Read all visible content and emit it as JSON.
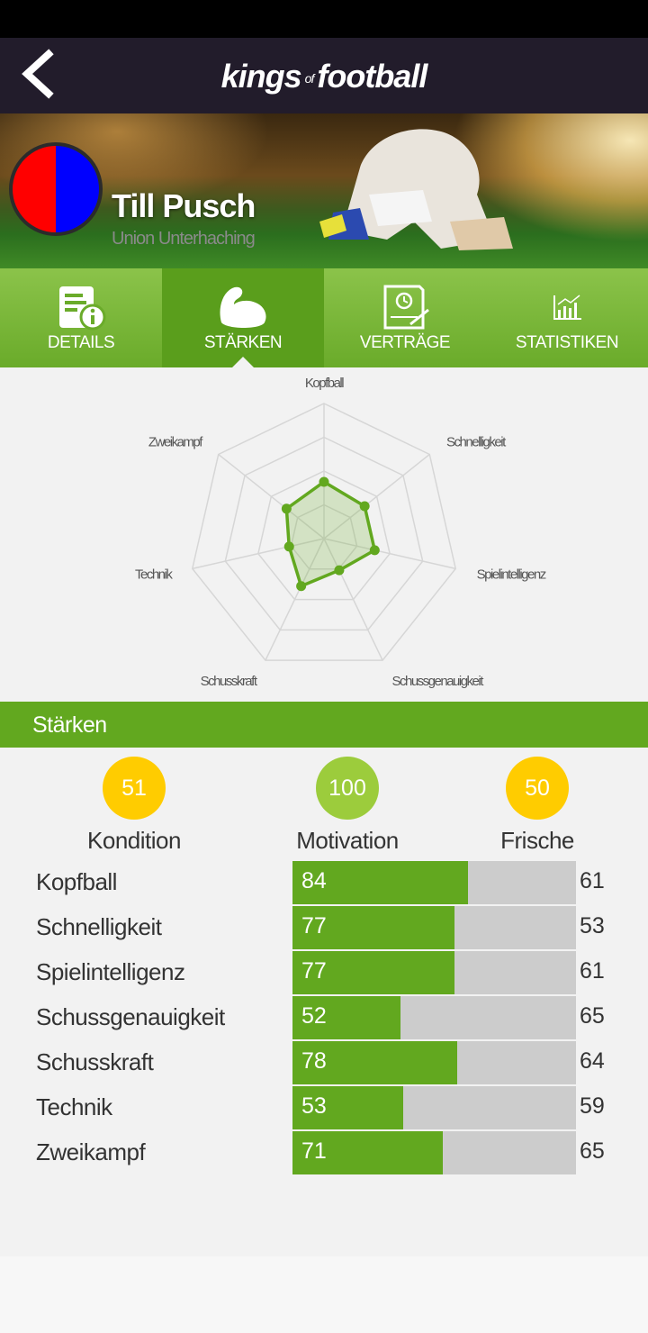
{
  "app": {
    "logo_main1": "kings",
    "logo_of": "of",
    "logo_main2": "football"
  },
  "player": {
    "name": "Till Pusch",
    "club": "Union Unterhaching",
    "badge_colors": [
      "#ff0000",
      "#0000ff"
    ]
  },
  "tabs": [
    {
      "label": "DETAILS",
      "icon": "document-info-icon",
      "active": false
    },
    {
      "label": "STÄRKEN",
      "icon": "flexed-biceps-icon",
      "active": true
    },
    {
      "label": "VERTRÄGE",
      "icon": "contract-clock-icon",
      "active": false
    },
    {
      "label": "STATISTIKEN",
      "icon": "bar-chart-icon",
      "active": false
    }
  ],
  "radar": {
    "axes": [
      "Kopfball",
      "Schnelligkeit",
      "Spielintelligenz",
      "Schussgenauigkeit",
      "Schusskraft",
      "Technik",
      "Zweikampf"
    ],
    "values": [
      84,
      77,
      77,
      52,
      78,
      53,
      71
    ],
    "accent": "#62a81f"
  },
  "section": {
    "title": "Stärken"
  },
  "stats": [
    {
      "value": "51",
      "label": "Kondition",
      "color": "#ffcc00"
    },
    {
      "value": "100",
      "label": "Motivation",
      "color": "#9ccc3c"
    },
    {
      "value": "50",
      "label": "Frische",
      "color": "#ffcc00"
    }
  ],
  "skills": [
    {
      "name": "Kopfball",
      "value": "84",
      "fill": 0.62,
      "compare": "61"
    },
    {
      "name": "Schnelligkeit",
      "value": "77",
      "fill": 0.57,
      "compare": "53"
    },
    {
      "name": "Spielintelligenz",
      "value": "77",
      "fill": 0.57,
      "compare": "61"
    },
    {
      "name": "Schussgenauigkeit",
      "value": "52",
      "fill": 0.38,
      "compare": "65"
    },
    {
      "name": "Schusskraft",
      "value": "78",
      "fill": 0.58,
      "compare": "64"
    },
    {
      "name": "Technik",
      "value": "53",
      "fill": 0.39,
      "compare": "59"
    },
    {
      "name": "Zweikampf",
      "value": "71",
      "fill": 0.53,
      "compare": "65"
    }
  ]
}
